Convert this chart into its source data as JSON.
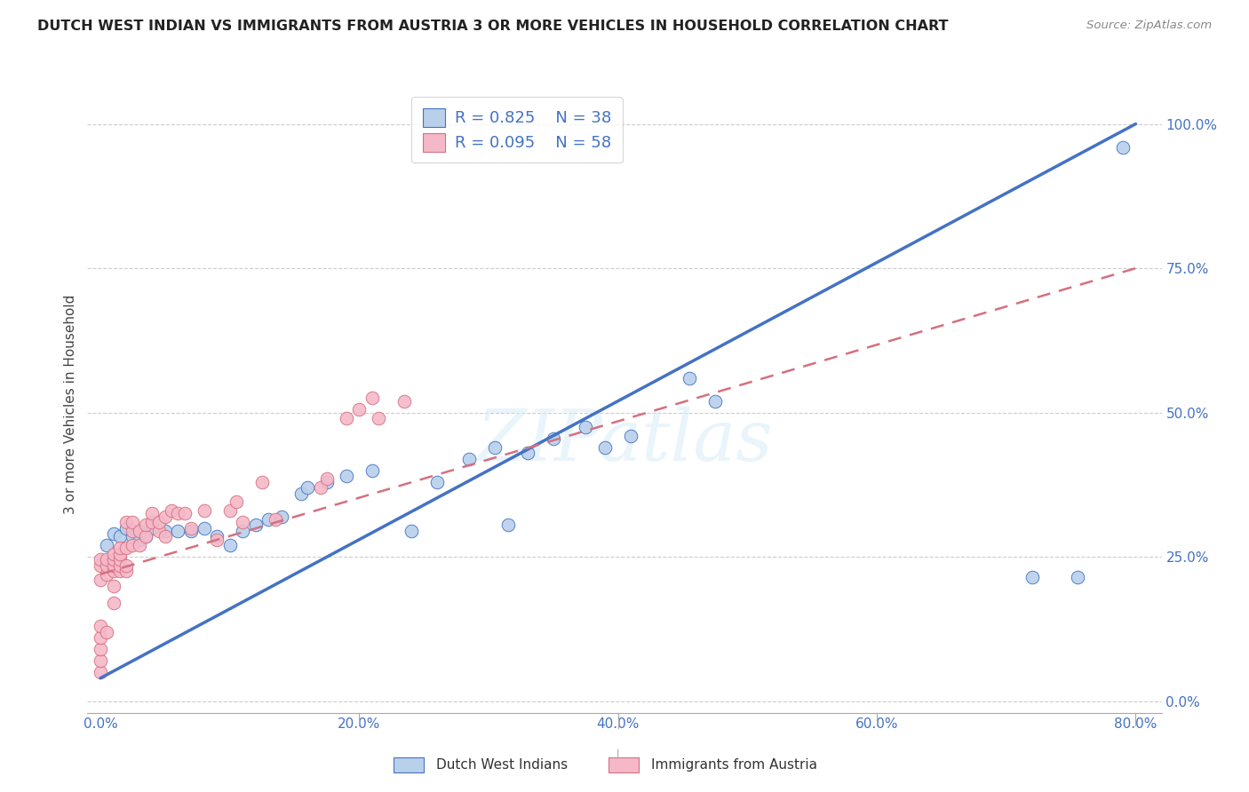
{
  "title": "DUTCH WEST INDIAN VS IMMIGRANTS FROM AUSTRIA 3 OR MORE VEHICLES IN HOUSEHOLD CORRELATION CHART",
  "source": "Source: ZipAtlas.com",
  "ylabel": "3 or more Vehicles in Household",
  "xaxis_ticks": [
    "0.0%",
    "",
    "",
    "",
    "",
    "20.0%",
    "",
    "",
    "",
    "",
    "40.0%",
    "",
    "",
    "",
    "",
    "60.0%",
    "",
    "",
    "",
    "",
    "80.0%"
  ],
  "xaxis_tick_vals": [
    0.0,
    0.04,
    0.08,
    0.12,
    0.16,
    0.2,
    0.24,
    0.28,
    0.32,
    0.36,
    0.4,
    0.44,
    0.48,
    0.52,
    0.56,
    0.6,
    0.64,
    0.68,
    0.72,
    0.76,
    0.8
  ],
  "yaxis_ticks_right": [
    "0.0%",
    "25.0%",
    "50.0%",
    "75.0%",
    "100.0%"
  ],
  "yaxis_tick_vals": [
    0.0,
    0.25,
    0.5,
    0.75,
    1.0
  ],
  "xlim": [
    -0.01,
    0.82
  ],
  "ylim": [
    -0.02,
    1.05
  ],
  "color_blue": "#b8d0ea",
  "color_pink": "#f5b8c8",
  "trendline_blue": "#4472c4",
  "trendline_pink": "#d47080",
  "text_blue": "#4472c4",
  "watermark_text": "ZIPatlas",
  "blue_trendline_x": [
    0.0,
    0.8
  ],
  "blue_trendline_y": [
    0.04,
    1.0
  ],
  "pink_trendline_x": [
    0.0,
    0.8
  ],
  "pink_trendline_y": [
    0.22,
    0.75
  ],
  "blue_scatter_x": [
    0.005,
    0.01,
    0.015,
    0.02,
    0.025,
    0.03,
    0.035,
    0.04,
    0.05,
    0.06,
    0.07,
    0.08,
    0.09,
    0.1,
    0.11,
    0.12,
    0.13,
    0.14,
    0.155,
    0.16,
    0.175,
    0.19,
    0.21,
    0.24,
    0.26,
    0.285,
    0.305,
    0.315,
    0.33,
    0.35,
    0.375,
    0.39,
    0.41,
    0.455,
    0.475,
    0.72,
    0.755,
    0.79
  ],
  "blue_scatter_y": [
    0.27,
    0.29,
    0.285,
    0.3,
    0.285,
    0.28,
    0.285,
    0.3,
    0.295,
    0.295,
    0.295,
    0.3,
    0.285,
    0.27,
    0.295,
    0.305,
    0.315,
    0.32,
    0.36,
    0.37,
    0.38,
    0.39,
    0.4,
    0.295,
    0.38,
    0.42,
    0.44,
    0.305,
    0.43,
    0.455,
    0.475,
    0.44,
    0.46,
    0.56,
    0.52,
    0.215,
    0.215,
    0.96
  ],
  "pink_scatter_x": [
    0.0,
    0.0,
    0.0,
    0.0,
    0.0,
    0.0,
    0.0,
    0.0,
    0.005,
    0.005,
    0.005,
    0.005,
    0.01,
    0.01,
    0.01,
    0.01,
    0.01,
    0.01,
    0.015,
    0.015,
    0.015,
    0.015,
    0.015,
    0.02,
    0.02,
    0.02,
    0.02,
    0.025,
    0.025,
    0.025,
    0.03,
    0.03,
    0.035,
    0.035,
    0.04,
    0.04,
    0.045,
    0.045,
    0.05,
    0.05,
    0.055,
    0.06,
    0.065,
    0.07,
    0.08,
    0.09,
    0.1,
    0.105,
    0.11,
    0.125,
    0.135,
    0.17,
    0.175,
    0.19,
    0.2,
    0.21,
    0.215,
    0.235
  ],
  "pink_scatter_y": [
    0.05,
    0.07,
    0.09,
    0.11,
    0.13,
    0.21,
    0.235,
    0.245,
    0.12,
    0.22,
    0.235,
    0.245,
    0.17,
    0.2,
    0.225,
    0.235,
    0.245,
    0.255,
    0.225,
    0.235,
    0.245,
    0.255,
    0.265,
    0.225,
    0.235,
    0.265,
    0.31,
    0.27,
    0.295,
    0.31,
    0.27,
    0.295,
    0.285,
    0.305,
    0.31,
    0.325,
    0.295,
    0.31,
    0.285,
    0.32,
    0.33,
    0.325,
    0.325,
    0.3,
    0.33,
    0.28,
    0.33,
    0.345,
    0.31,
    0.38,
    0.315,
    0.37,
    0.385,
    0.49,
    0.505,
    0.525,
    0.49,
    0.52
  ]
}
